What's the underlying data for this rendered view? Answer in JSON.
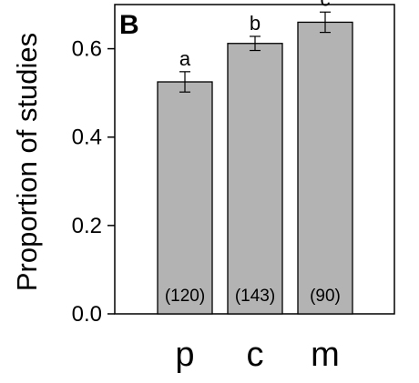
{
  "chart_data": {
    "type": "bar",
    "panel_label": "B",
    "ylabel": "Proportion of studies",
    "xlabel": "",
    "ylim": [
      0,
      0.7
    ],
    "yticks": [
      0.0,
      0.2,
      0.4,
      0.6
    ],
    "ytick_labels": [
      "0.0",
      "0.2",
      "0.4",
      "0.6"
    ],
    "categories": [
      "p",
      "c",
      "m"
    ],
    "values": [
      0.525,
      0.612,
      0.66
    ],
    "error": [
      0.023,
      0.016,
      0.023
    ],
    "significance_letters": [
      "a",
      "b",
      "c"
    ],
    "sample_sizes": [
      "(120)",
      "(143)",
      "(90)"
    ],
    "bar_color": "#b3b3b3",
    "grid": false,
    "legend": "none"
  }
}
